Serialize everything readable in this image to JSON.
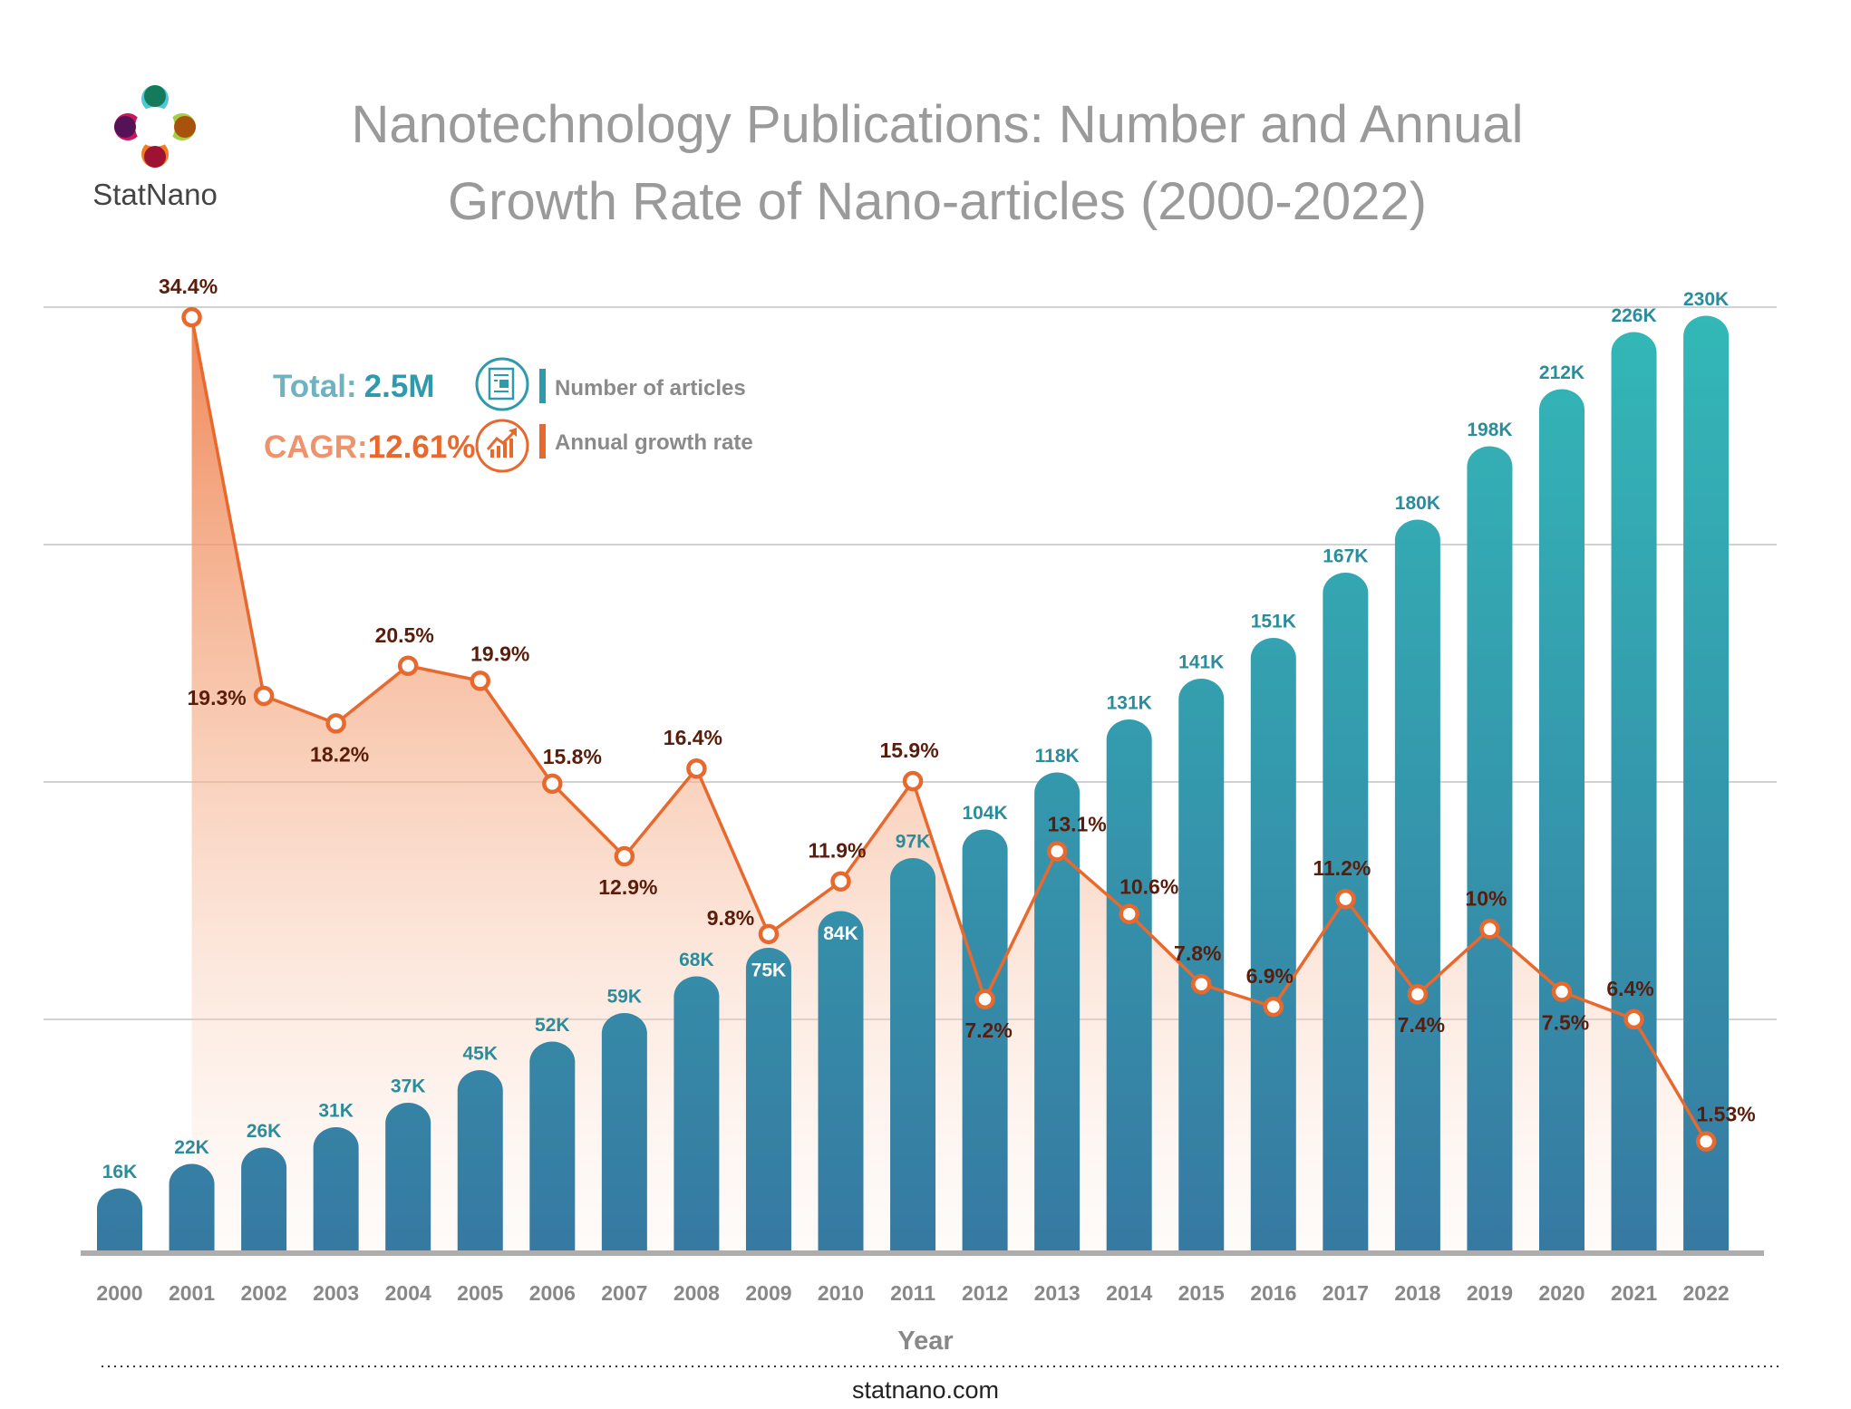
{
  "brand": {
    "name": "StatNano",
    "website": "statnano.com"
  },
  "chart_data": {
    "type": "bar+line",
    "title": [
      "Nanotechnology Publications: Number and Annual",
      "Growth Rate of Nano-articles (2000-2022)"
    ],
    "xlabel": "Year",
    "ylabel": "",
    "categories": [
      "2000",
      "2001",
      "2002",
      "2003",
      "2004",
      "2005",
      "2006",
      "2007",
      "2008",
      "2009",
      "2010",
      "2011",
      "2012",
      "2013",
      "2014",
      "2015",
      "2016",
      "2017",
      "2018",
      "2019",
      "2020",
      "2021",
      "2022"
    ],
    "grid": true,
    "summary": {
      "total_label": "Total:",
      "total_value": "2.5M",
      "cagr_label": "CAGR:",
      "cagr_value": "12.61%"
    },
    "legend": {
      "bars": "Number of articles",
      "line": "Annual growth rate",
      "placement": "top-left"
    },
    "series": [
      {
        "name": "Number of articles",
        "type": "bar",
        "unit": "thousands",
        "values": [
          16,
          22,
          26,
          31,
          37,
          45,
          52,
          59,
          68,
          75,
          84,
          97,
          104,
          118,
          131,
          141,
          151,
          167,
          180,
          198,
          212,
          226,
          230
        ],
        "labels": [
          "16K",
          "22K",
          "26K",
          "31K",
          "37K",
          "45K",
          "52K",
          "59K",
          "68K",
          "75K",
          "84K",
          "97K",
          "104K",
          "118K",
          "131K",
          "141K",
          "151K",
          "167K",
          "180K",
          "198K",
          "212K",
          "226K",
          "230K"
        ],
        "color": "#33b5b5"
      },
      {
        "name": "Annual growth rate",
        "type": "line",
        "unit": "%",
        "x": [
          "2001",
          "2002",
          "2003",
          "2004",
          "2005",
          "2006",
          "2007",
          "2008",
          "2009",
          "2010",
          "2011",
          "2012",
          "2013",
          "2014",
          "2015",
          "2016",
          "2017",
          "2018",
          "2019",
          "2020",
          "2021",
          "2022"
        ],
        "values": [
          34.4,
          19.3,
          18.2,
          20.5,
          19.9,
          15.8,
          12.9,
          16.4,
          9.8,
          11.9,
          15.9,
          7.2,
          13.1,
          10.6,
          7.8,
          6.9,
          11.2,
          7.4,
          10,
          7.5,
          6.4,
          1.53
        ],
        "labels": [
          "34.4%",
          "19.3%",
          "18.2%",
          "20.5%",
          "19.9%",
          "15.8%",
          "12.9%",
          "16.4%",
          "9.8%",
          "11.9%",
          "15.9%",
          "7.2%",
          "13.1%",
          "10.6%",
          "7.8%",
          "6.9%",
          "11.2%",
          "7.4%",
          "10%",
          "7.5%",
          "6.4%",
          "1.53%"
        ],
        "color": "#e8692e"
      }
    ],
    "colors": {
      "bar_top": "#33b8b7",
      "bar_bottom": "#3679a2",
      "line": "#e8692e",
      "pct_label": "#5a1d0c",
      "bar_label": "#2b8d9c"
    }
  },
  "icons": {
    "articles": "newspaper-icon",
    "growth": "growth-chart-icon"
  }
}
